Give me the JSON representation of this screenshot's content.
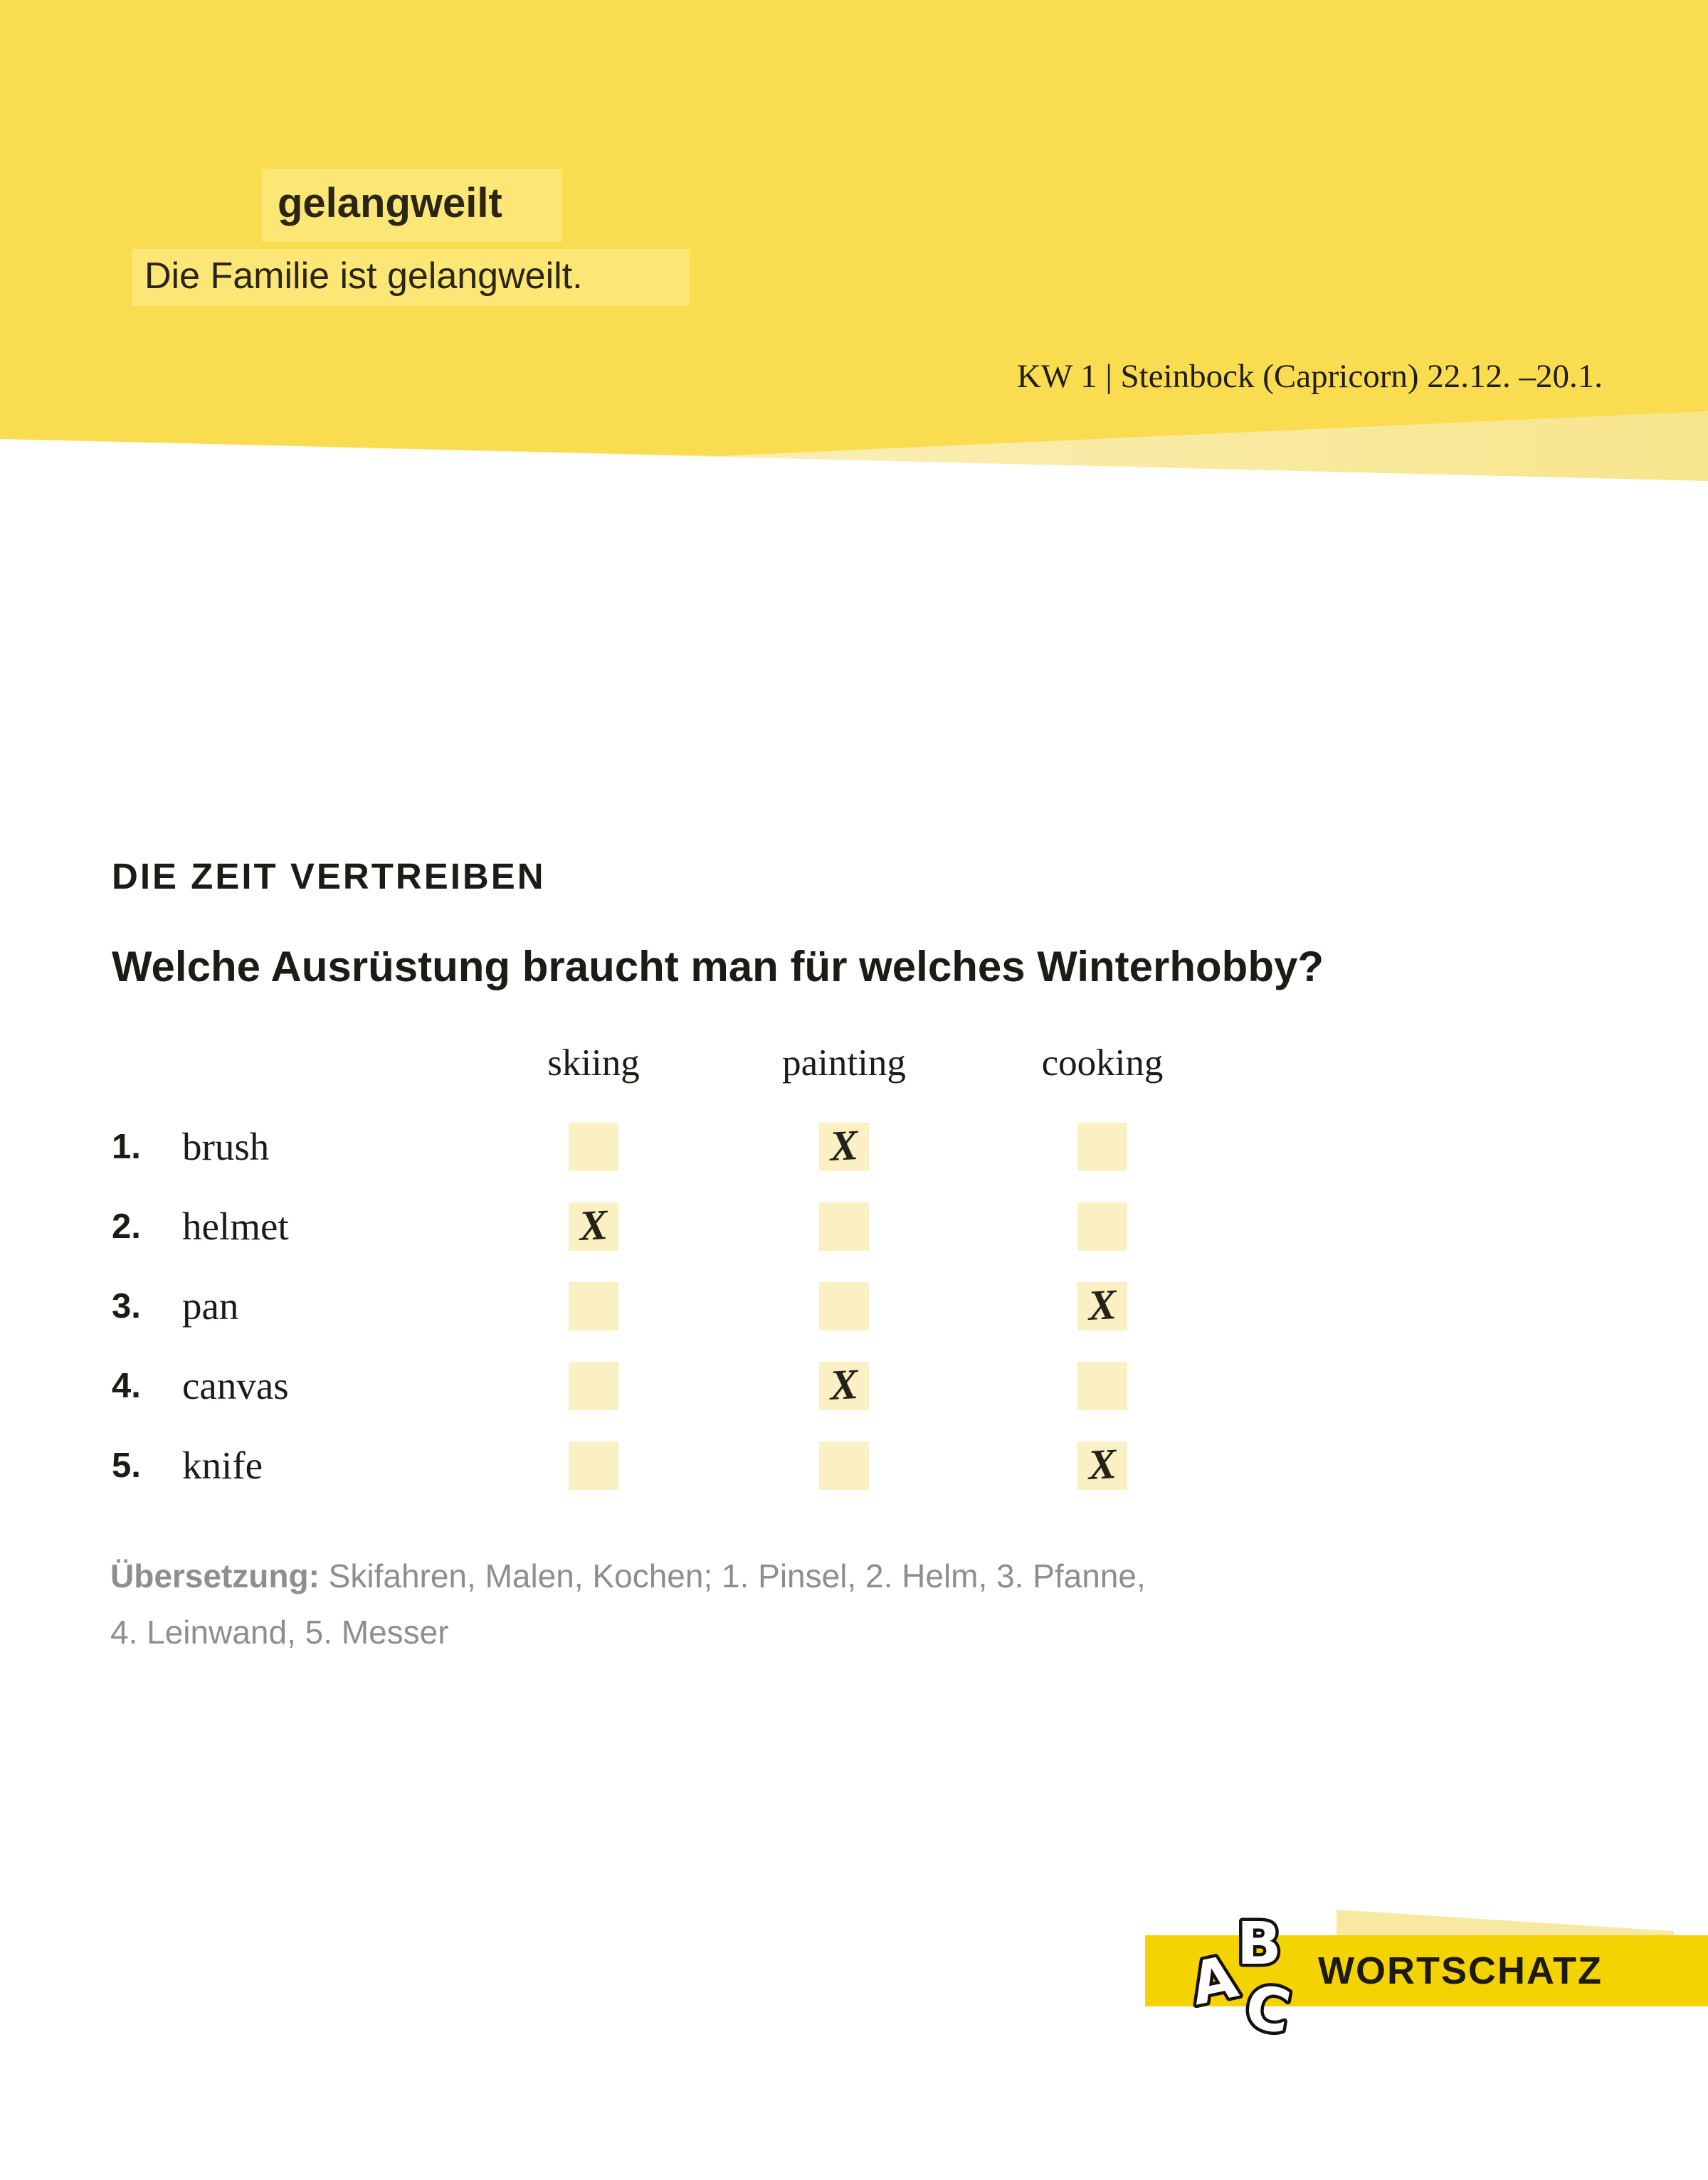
{
  "header": {
    "word": "gelangweilt",
    "example_sentence": "Die Familie ist gelangweilt.",
    "week_line": "KW 1 | Steinbock (Capricorn) 22.12. –20.1."
  },
  "exercise": {
    "section_title": "DIE ZEIT VERTREIBEN",
    "question": "Welche Ausrüstung braucht man für welches Winterhobby?",
    "columns": [
      "skiing",
      "painting",
      "cooking"
    ],
    "rows": [
      {
        "num": "1.",
        "label": "brush",
        "answer": "painting",
        "marks": {
          "skiing": "",
          "painting": "X",
          "cooking": ""
        }
      },
      {
        "num": "2.",
        "label": "helmet",
        "answer": "skiing",
        "marks": {
          "skiing": "X",
          "painting": "",
          "cooking": ""
        }
      },
      {
        "num": "3.",
        "label": "pan",
        "answer": "cooking",
        "marks": {
          "skiing": "",
          "painting": "",
          "cooking": "X"
        }
      },
      {
        "num": "4.",
        "label": "canvas",
        "answer": "painting",
        "marks": {
          "skiing": "",
          "painting": "X",
          "cooking": ""
        }
      },
      {
        "num": "5.",
        "label": "knife",
        "answer": "cooking",
        "marks": {
          "skiing": "",
          "painting": "",
          "cooking": "X"
        }
      }
    ]
  },
  "translation": {
    "label": "Übersetzung:",
    "line1": " Skifahren, Malen, Kochen; 1. Pinsel, 2. Helm, 3. Pfanne,",
    "line2": "4. Leinwand, 5. Messer"
  },
  "footer": {
    "logo_letters": [
      "A",
      "B",
      "C"
    ],
    "brand": "WORTSCHATZ"
  },
  "colors": {
    "banner_yellow": "#F9DC4F",
    "banner_highlight": "#FBE676",
    "banner_wedge": "#F7E58C",
    "checkbox_yellow": "#FAF0C3",
    "footer_band_yellow": "#F3D402",
    "footer_wedge": "#F8E9A2",
    "text_dark": "#1D1B16",
    "text_gray": "#8E8E8E"
  }
}
